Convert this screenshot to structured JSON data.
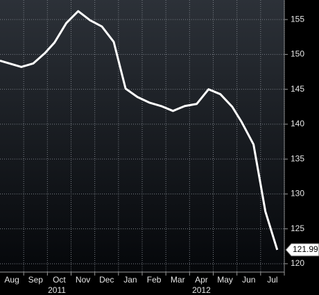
{
  "chart_data": {
    "type": "line",
    "x": [
      0,
      0.9,
      1.4,
      1.9,
      2.3,
      2.8,
      3.3,
      3.8,
      4.3,
      4.8,
      5.3,
      5.8,
      6.3,
      6.8,
      7.3,
      7.8,
      8.3,
      8.8,
      9.3,
      9.8,
      10.2,
      10.7,
      11.2,
      11.7
    ],
    "series": [
      {
        "color": "#ffffff",
        "values": [
          149.1,
          148.2,
          148.7,
          150.2,
          151.7,
          154.5,
          156.2,
          154.9,
          154.0,
          151.8,
          145.1,
          143.9,
          143.1,
          142.6,
          141.9,
          142.6,
          142.9,
          145.0,
          144.3,
          142.5,
          140.3,
          137.1,
          127.5,
          121.99
        ]
      }
    ],
    "xlim": [
      0,
      12
    ],
    "xticks": [
      {
        "value": 0.5,
        "label": "Aug"
      },
      {
        "value": 1.5,
        "label": "Sep"
      },
      {
        "value": 2.5,
        "label": "Oct"
      },
      {
        "value": 3.5,
        "label": "Nov"
      },
      {
        "value": 4.5,
        "label": "Dec"
      },
      {
        "value": 5.5,
        "label": "Jan"
      },
      {
        "value": 6.5,
        "label": "Feb"
      },
      {
        "value": 7.5,
        "label": "Mar"
      },
      {
        "value": 8.5,
        "label": "Apr"
      },
      {
        "value": 9.5,
        "label": "May"
      },
      {
        "value": 10.5,
        "label": "Jun"
      },
      {
        "value": 11.5,
        "label": "Jul"
      }
    ],
    "year_labels": [
      {
        "value": 2.4,
        "label": "2011"
      },
      {
        "value": 8.5,
        "label": "2012"
      }
    ],
    "ylim": [
      118.8,
      157.8
    ],
    "yticks": [
      120,
      125,
      130,
      135,
      140,
      145,
      150,
      155
    ],
    "grid": true
  }
}
